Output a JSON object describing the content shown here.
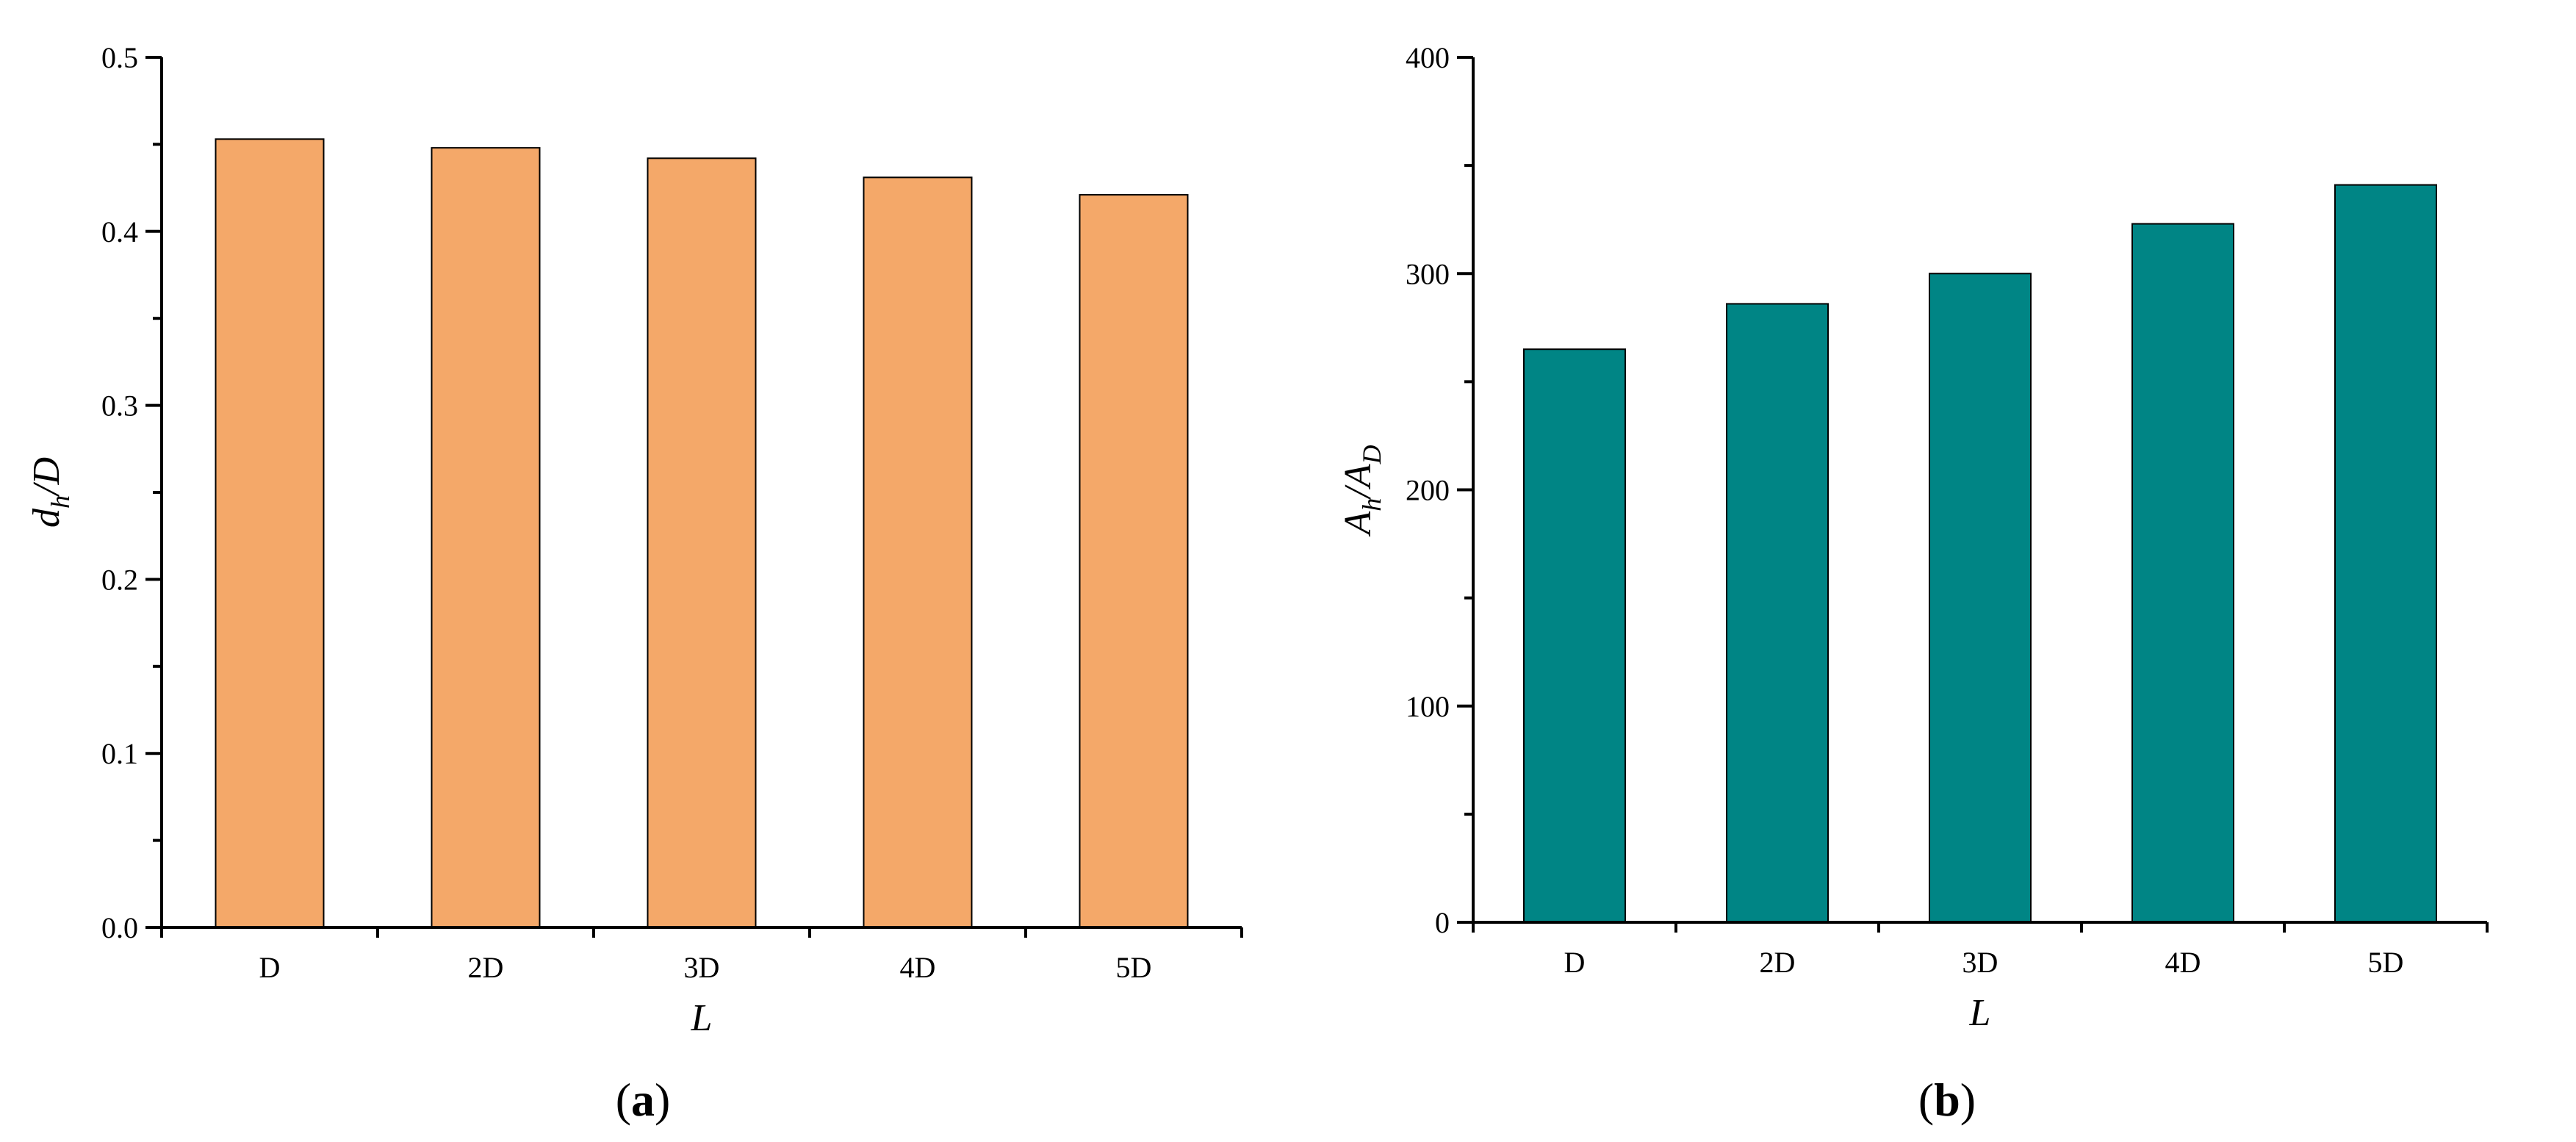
{
  "chart_data": [
    {
      "panel_label": "a",
      "type": "bar",
      "categories": [
        "D",
        "2D",
        "3D",
        "4D",
        "5D"
      ],
      "values": [
        0.453,
        0.448,
        0.442,
        0.431,
        0.421
      ],
      "xlabel": "L",
      "ylabel_main": "d",
      "ylabel_sub": "h",
      "ylabel_tail": "/D",
      "ylim": [
        0,
        0.5
      ],
      "yticks": [
        0.0,
        0.1,
        0.2,
        0.3,
        0.4,
        0.5
      ],
      "ytick_labels": [
        "0.0",
        "0.1",
        "0.2",
        "0.3",
        "0.4",
        "0.5"
      ],
      "grid": false,
      "bar_color": "#F4A869"
    },
    {
      "panel_label": "b",
      "type": "bar",
      "categories": [
        "D",
        "2D",
        "3D",
        "4D",
        "5D"
      ],
      "values": [
        265,
        286,
        300,
        323,
        341
      ],
      "xlabel": "L",
      "ylabel_main": "A",
      "ylabel_sub": "h",
      "ylabel_tail": "/A",
      "ylabel_sub2": "D",
      "ylim": [
        0,
        400
      ],
      "yticks": [
        0,
        100,
        200,
        300,
        400
      ],
      "ytick_labels": [
        "0",
        "100",
        "200",
        "300",
        "400"
      ],
      "grid": false,
      "bar_color": "#008585"
    }
  ]
}
